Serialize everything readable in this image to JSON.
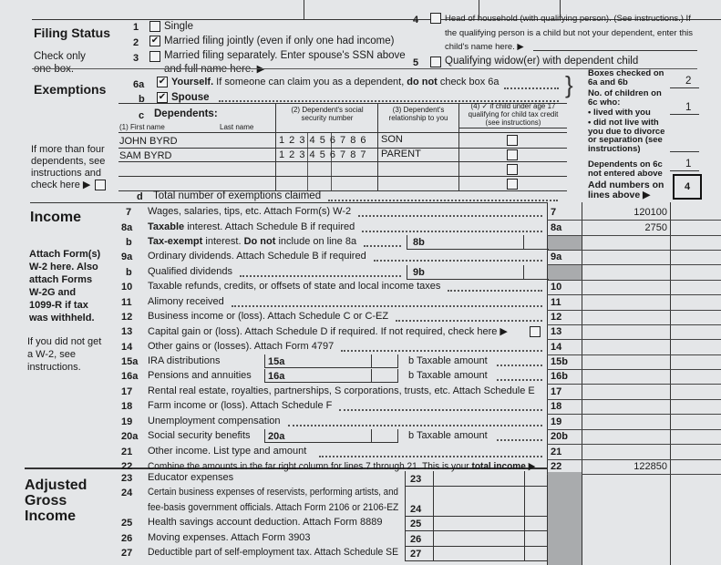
{
  "filing_status": {
    "heading": "Filing Status",
    "note": "Check only one box.",
    "options": [
      {
        "num": "1",
        "label": "Single",
        "checked": false
      },
      {
        "num": "2",
        "label": "Married filing jointly (even if only one had income)",
        "checked": true
      },
      {
        "num": "3",
        "label": "Married filing separately. Enter spouse's SSN above",
        "label2": "and full name here. ▶",
        "checked": false
      },
      {
        "num": "4",
        "label": "Head of household (with qualifying person). (See instructions.) If",
        "label2": "the qualifying person is a child but not your dependent, enter this",
        "label3": "child's name here. ▶",
        "checked": false
      },
      {
        "num": "5",
        "label": "Qualifying widow(er) with dependent child",
        "checked": false
      }
    ]
  },
  "exemptions": {
    "heading": "Exemptions",
    "yourself_num": "6a",
    "yourself_bold": "Yourself.",
    "yourself_text": "If someone can claim you as a dependent,",
    "yourself_bold2": "do not",
    "yourself_text2": "check box 6a",
    "spouse_num": "b",
    "spouse_label": "Spouse",
    "dependents_num": "c",
    "dependents_label": "Dependents:",
    "col1a": "(1) First name",
    "col1b": "Last name",
    "col2": "(2) Dependent's social security number",
    "col3": "(3) Dependent's relationship to you",
    "col4": "(4) ✓ if child under age 17 qualifying for child tax credit (see instructions)",
    "dependents": [
      {
        "name": "JOHN BYRD",
        "ssn": "1 2 3 4 5 6 7 8 6",
        "relationship": "SON"
      },
      {
        "name": "SAM BYRD",
        "ssn": "1 2 3 4 5 6 7 8 7",
        "relationship": "PARENT"
      }
    ],
    "more_note": "If more than four dependents, see instructions and check here ▶",
    "total_num": "d",
    "total_label": "Total number of exemptions claimed",
    "boxes_checked_label": "Boxes checked on 6a and 6b",
    "boxes_checked": "2",
    "children_label": "No. of children on 6c who:",
    "lived_label": "• lived with you",
    "lived": "1",
    "not_live_label": "• did not live with you due to divorce or separation (see instructions)",
    "not_live": "",
    "not_entered_label": "Dependents on 6c not entered above",
    "not_entered": "1",
    "add_label": "Add numbers on lines above ▶",
    "total": "4"
  },
  "income": {
    "heading": "Income",
    "attach_note": "Attach Form(s) W-2 here. Also attach Forms W-2G and 1099-R if tax was withheld.",
    "w2_note": "If you did not get a W-2, see instructions.",
    "lines": [
      {
        "num": "7",
        "text": "Wages, salaries, tips, etc. Attach Form(s) W-2",
        "line": "7",
        "amount": "120100"
      },
      {
        "num": "8a",
        "text": "Taxable interest. Attach Schedule B if required",
        "line": "8a",
        "amount": "2750"
      },
      {
        "num": "b",
        "text": "Tax-exempt interest. Do not include on line 8a",
        "box": "8b"
      },
      {
        "num": "9a",
        "text": "Ordinary dividends. Attach Schedule B if required",
        "line": "9a"
      },
      {
        "num": "b",
        "text": "Qualified dividends",
        "box": "9b"
      },
      {
        "num": "10",
        "text": "Taxable refunds, credits, or offsets of state and local income taxes",
        "line": "10"
      },
      {
        "num": "11",
        "text": "Alimony received",
        "line": "11"
      },
      {
        "num": "12",
        "text": "Business income or (loss). Attach Schedule C or C-EZ",
        "line": "12"
      },
      {
        "num": "13",
        "text": "Capital gain or (loss). Attach Schedule D if required. If not required, check here ▶",
        "line": "13"
      },
      {
        "num": "14",
        "text": "Other gains or (losses). Attach Form 4797",
        "line": "14"
      },
      {
        "num": "15a",
        "text": "IRA distributions",
        "box": "15a",
        "taxable": "b  Taxable amount",
        "line": "15b"
      },
      {
        "num": "16a",
        "text": "Pensions and annuities",
        "box": "16a",
        "taxable": "b  Taxable amount",
        "line": "16b"
      },
      {
        "num": "17",
        "text": "Rental real estate, royalties, partnerships, S corporations, trusts, etc. Attach Schedule E",
        "line": "17"
      },
      {
        "num": "18",
        "text": "Farm income or (loss). Attach Schedule F",
        "line": "18"
      },
      {
        "num": "19",
        "text": "Unemployment compensation",
        "line": "19"
      },
      {
        "num": "20a",
        "text": "Social security benefits",
        "box": "20a",
        "taxable": "b  Taxable amount",
        "line": "20b"
      },
      {
        "num": "21",
        "text": "Other income. List type and amount",
        "line": "21"
      },
      {
        "num": "22",
        "text": "Combine the amounts in the far right column for lines 7 through 21. This is your total income ▶",
        "line": "22",
        "amount": "122850"
      }
    ]
  },
  "agi": {
    "heading": "Adjusted Gross Income",
    "lines": [
      {
        "num": "23",
        "text": "Educator expenses",
        "box": "23"
      },
      {
        "num": "24",
        "text": "Certain business expenses of reservists, performing artists, and",
        "text2": "fee-basis government officials. Attach Form 2106 or 2106-EZ",
        "box": "24"
      },
      {
        "num": "25",
        "text": "Health savings account deduction. Attach Form 8889",
        "box": "25"
      },
      {
        "num": "26",
        "text": "Moving expenses. Attach Form 3903",
        "box": "26"
      },
      {
        "num": "27",
        "text": "Deductible part of self-employment tax. Attach Schedule SE",
        "box": "27"
      }
    ]
  }
}
